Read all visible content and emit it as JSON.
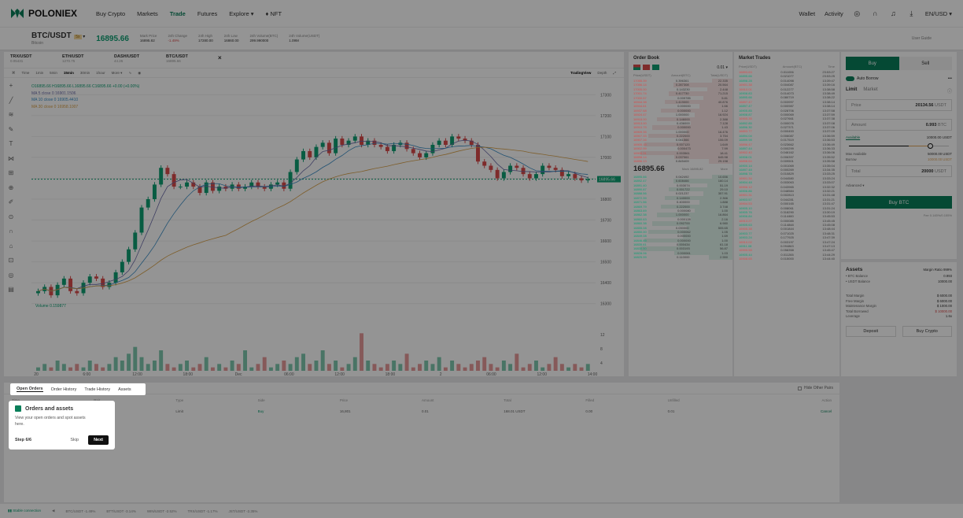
{
  "nav": {
    "brand": "POLONIEX",
    "links": [
      "Buy Crypto",
      "Markets",
      "Trade",
      "Futures",
      "Explore ▾",
      "♦ NFT"
    ],
    "wallet": "Wallet",
    "activity": "Activity",
    "lang": "EN/USD ▾"
  },
  "ticker": {
    "pair": "BTC/USDT",
    "badge": "5x",
    "coin": "Bitcoin",
    "price": "16895.66",
    "price_sub": "16895.66",
    "stats": [
      {
        "label": "Mark Price",
        "value": "16895.82"
      },
      {
        "label": "24h Change",
        "value": "-1.49%"
      },
      {
        "label": "24h High",
        "value": "17280.00"
      },
      {
        "label": "24h Low",
        "value": "16860.00"
      },
      {
        "label": "24h Volume(BTC)",
        "value": "299.990000"
      },
      {
        "label": "24h Volume(USDT)",
        "value": "1.09M"
      }
    ],
    "user_guide": "User Guide"
  },
  "chart_tabs": [
    {
      "name": "TRX/USDT",
      "price": "0.05431"
    },
    {
      "name": "ETH/USDT",
      "price": "1270.75"
    },
    {
      "name": "DASH/USDT",
      "price": "44.26"
    },
    {
      "name": "BTC/USDT",
      "price": "16895.66"
    }
  ],
  "toolbar": {
    "items": [
      "Time",
      "1min",
      "5min",
      "15min",
      "30min",
      "1hour",
      "More ▾"
    ],
    "selected": "15min",
    "tradingview": "TradingView",
    "depth": "Depth"
  },
  "legend": {
    "ohlc": "O16895.66 H16895.66 L16895.66 C16895.66 +0.00 (+0.00%)",
    "ma5": "MA 5 close 0  16901.1506",
    "ma10": "MA 10 close 0  16905.4410",
    "ma30": "MA 30 close 0  16958.1007",
    "volume": "Volume  0.159877"
  },
  "chart_data": {
    "type": "candlestick",
    "title": "",
    "xlabel": "",
    "ylabel": "",
    "x_ticks": [
      "20",
      "6:00",
      "12:00",
      "18:00",
      "Dec",
      "06:00",
      "12:00",
      "18:00",
      "2",
      "06:00",
      "12:00",
      "14:00"
    ],
    "y_ticks": [
      17300,
      17200,
      17100,
      17000,
      16900,
      16800,
      16700,
      16600,
      16500,
      16400,
      16300
    ],
    "ylim": [
      16250,
      17350
    ],
    "last_price_label": "16895.66",
    "volume_ticks": [
      "12",
      "8",
      "4"
    ],
    "series": [
      {
        "name": "Price",
        "values": [
          16360,
          16380,
          16340,
          16390,
          16420,
          16360,
          16350,
          16400,
          16430,
          16420,
          16380,
          16400,
          16450,
          16500,
          16560,
          16640,
          16760,
          16800,
          16870,
          16950,
          16920,
          16860,
          16860,
          16880,
          16860,
          16830,
          16880,
          16840,
          16860,
          16850,
          16870,
          16850,
          16860,
          16880,
          16860,
          16850,
          16870,
          16880,
          16850,
          16930,
          16990,
          17030,
          17000,
          17050,
          17070,
          17020,
          17090,
          17060,
          17080,
          17100,
          17060,
          17080,
          17060,
          17050,
          17030,
          17060,
          17070,
          17040,
          17020,
          17000,
          17020,
          17060,
          17080,
          17060,
          17100,
          17090,
          17080,
          17060,
          16980,
          16960,
          16940,
          16900,
          16930,
          16960,
          16950,
          16920,
          16900,
          16920,
          16960,
          16950,
          16940,
          16910,
          16920,
          16900,
          16890,
          16895
        ]
      },
      {
        "name": "Volume",
        "values": [
          1,
          2,
          1,
          3,
          2,
          1,
          2,
          1,
          3,
          2,
          1,
          2,
          4,
          3,
          5,
          7,
          4,
          2,
          3,
          6,
          2,
          1,
          2,
          3,
          1,
          2,
          4,
          1,
          2,
          1,
          3,
          2,
          6,
          1,
          2,
          4,
          1,
          2,
          3,
          2,
          4,
          5,
          2,
          3,
          6,
          2,
          3,
          1,
          2,
          4,
          11,
          3,
          2,
          1,
          2,
          3,
          2,
          5,
          1,
          2,
          3,
          2,
          4,
          1,
          3,
          2,
          1,
          2,
          3,
          4,
          2,
          1,
          3,
          2,
          5,
          1,
          2,
          3,
          1,
          2,
          4,
          2,
          1,
          2,
          1,
          2
        ]
      }
    ]
  },
  "orderbook": {
    "title": "Order Book",
    "precision": "0.01 ▾",
    "headers": [
      "Price(USDT)",
      "Amount(BTC)",
      "Total(USDT)"
    ],
    "asks": [
      [
        "17055.39",
        "0.396361",
        "22.335"
      ],
      [
        "17056.14",
        "0.287308",
        "20.564"
      ],
      [
        "17005.00",
        "0.143230",
        "2.448"
      ],
      [
        "17001.74",
        "0.417730",
        "71.215"
      ],
      [
        "17000.57",
        "0.009785",
        "5.81"
      ],
      [
        "16944.38",
        "1.419000",
        "40.876"
      ],
      [
        "16944.61",
        "0.000000",
        "1.66"
      ],
      [
        "16937.68",
        "0.000000",
        "1.12"
      ],
      [
        "16924.47",
        "1.000000",
        "16.924"
      ],
      [
        "16918.00",
        "0.146000",
        "2.388"
      ],
      [
        "16913.00",
        "0.436000",
        "7.128"
      ],
      [
        "16910.79",
        "0.000000",
        "1.43"
      ],
      [
        "16909.35",
        "1.000000",
        "16.476"
      ],
      [
        "16907.33",
        "0.222000",
        "3.754"
      ],
      [
        "16907.16",
        "0.041566",
        "106.09"
      ],
      [
        "16905.19",
        "0.007120",
        "1.649"
      ],
      [
        "16902.99",
        "0.000473",
        "7.99"
      ],
      [
        "16900.31",
        "0.003561",
        "18.41"
      ],
      [
        "16898.14",
        "0.037061",
        "645.98"
      ],
      [
        "16896.13",
        "0.845409",
        "29.198"
      ]
    ],
    "mid_price": "16895.66",
    "mark_label": "Mark  16895.82",
    "more": "More",
    "bids": [
      [
        "16895.66",
        "0.042492",
        "10.656"
      ],
      [
        "16892.47",
        "0.608466",
        "160.14"
      ],
      [
        "16891.40",
        "0.003074",
        "51.19"
      ],
      [
        "16890.87",
        "0.001722",
        "29.10"
      ],
      [
        "16888.56",
        "0.021237",
        "357.91"
      ],
      [
        "16872.39",
        "0.140000",
        "2.366"
      ],
      [
        "16871.56",
        "0.400000",
        "1.888"
      ],
      [
        "16869.79",
        "0.222000",
        "3.748"
      ],
      [
        "16863.69",
        "0.000080",
        "1.00"
      ],
      [
        "16862.38",
        "1.000000",
        "16.864"
      ],
      [
        "16860.63",
        "0.000128",
        "2.16"
      ],
      [
        "16860.38",
        "0.092700",
        "6.980"
      ],
      [
        "16855.08",
        "0.030000",
        "505.65"
      ],
      [
        "16850.00",
        "0.000062",
        "1.05"
      ],
      [
        "16849.08",
        "0.000000",
        "1.69"
      ],
      [
        "16846.89",
        "0.000000",
        "1.00"
      ],
      [
        "16835.61",
        "0.000434",
        "61.18"
      ],
      [
        "16830.50",
        "0.003193",
        "56.87"
      ],
      [
        "16828.06",
        "0.000061",
        "1.03"
      ],
      [
        "16825.99",
        "0.110000",
        "2.550"
      ]
    ]
  },
  "market_trades": {
    "title": "Market Trades",
    "headers": [
      "Price(USDT)",
      "Amount(BTC)",
      "Time"
    ],
    "rows": [
      [
        "16893.63",
        "0.011006",
        "23:53:27",
        "r"
      ],
      [
        "16895.66",
        "0.021077",
        "23:53:25",
        "g"
      ],
      [
        "16898.28",
        "0.014098",
        "13:39:47",
        "g"
      ],
      [
        "16901.38",
        "0.004087",
        "13:39:16",
        "r"
      ],
      [
        "16910.01",
        "0.012277",
        "13:38:58",
        "r"
      ],
      [
        "16908.83",
        "0.014073",
        "13:38:49",
        "g"
      ],
      [
        "16895.66",
        "0.080719",
        "13:38:22",
        "g"
      ],
      [
        "16897.47",
        "0.003997",
        "13:38:14",
        "r"
      ],
      [
        "16897.47",
        "0.000987",
        "13:38:14",
        "g"
      ],
      [
        "16905.85",
        "0.028706",
        "13:37:58",
        "g"
      ],
      [
        "16908.87",
        "0.000069",
        "13:37:59",
        "g"
      ],
      [
        "16905.35",
        "0.027661",
        "13:37:38",
        "r"
      ],
      [
        "16892.85",
        "0.000076",
        "13:37:08",
        "g"
      ],
      [
        "16896.30",
        "0.027371",
        "13:37:06",
        "g"
      ],
      [
        "16893.77",
        "0.000453",
        "13:37:09",
        "r"
      ],
      [
        "16894.04",
        "0.006087",
        "13:36:59",
        "g"
      ],
      [
        "16899.98",
        "0.017519",
        "13:36:53",
        "g"
      ],
      [
        "16896.47",
        "0.023662",
        "13:36:49",
        "r"
      ],
      [
        "16897.44",
        "0.000299",
        "13:36:33",
        "g"
      ],
      [
        "16902.40",
        "0.046162",
        "13:36:06",
        "r"
      ],
      [
        "16908.01",
        "0.006397",
        "13:35:52",
        "g"
      ],
      [
        "16898.64",
        "0.009501",
        "13:35:58",
        "r"
      ],
      [
        "16900.14",
        "0.001069",
        "13:35:04",
        "g"
      ],
      [
        "16897.48",
        "0.000269",
        "13:34:35",
        "g"
      ],
      [
        "16898.78",
        "0.010829",
        "13:33:25",
        "g"
      ],
      [
        "16901.34",
        "0.044580",
        "13:33:24",
        "r"
      ],
      [
        "16904.48",
        "0.003063",
        "13:33:07",
        "g"
      ],
      [
        "16906.12",
        "0.043965",
        "13:32:32",
        "r"
      ],
      [
        "16906.86",
        "0.048584",
        "13:32:21",
        "g"
      ],
      [
        "16901.31",
        "0.002813",
        "13:31:48",
        "r"
      ],
      [
        "16903.57",
        "0.044281",
        "13:31:21",
        "g"
      ],
      [
        "16904.53",
        "0.000165",
        "13:31:47",
        "r"
      ],
      [
        "16905.10",
        "0.008061",
        "13:31:24",
        "g"
      ],
      [
        "16905.76",
        "0.318290",
        "13:30:19",
        "g"
      ],
      [
        "16906.84",
        "0.114460",
        "13:45:53",
        "g"
      ],
      [
        "16913.27",
        "0.000085",
        "13:45:45",
        "r"
      ],
      [
        "16905.63",
        "0.114848",
        "13:45:08",
        "g"
      ],
      [
        "16905.38",
        "0.001844",
        "13:48:44",
        "r"
      ],
      [
        "16903.77",
        "0.071025",
        "13:48:31",
        "g"
      ],
      [
        "16903.24",
        "0.177925",
        "13:47:39",
        "g"
      ],
      [
        "16910.02",
        "0.003197",
        "13:47:24",
        "r"
      ],
      [
        "16911.08",
        "0.094863",
        "13:47:13",
        "g"
      ],
      [
        "16905.58",
        "0.058358",
        "13:45:47",
        "r"
      ],
      [
        "16905.44",
        "0.011265",
        "13:44:29",
        "g"
      ],
      [
        "16908.65",
        "0.015000",
        "13:44:40",
        "r"
      ]
    ]
  },
  "trade": {
    "buy": "Buy",
    "sell": "Sell",
    "auto_borrow": "Auto Borrow",
    "more": "•••",
    "limit": "Limit",
    "market": "Market",
    "price_label": "Price",
    "price_value": "20134.56",
    "price_unit": "USDT",
    "amount_label": "Amount",
    "amount_value": "0.993",
    "amount_unit": "BTC",
    "available": "Available",
    "available_value": "10000.00 USDT",
    "max_available": "Max Available",
    "max_available_value": "50000.00 USDT",
    "borrow": "Borrow",
    "borrow_value": "10000.00 USDT",
    "total_label": "Total",
    "total_value": "20000",
    "total_unit": "USDT",
    "advanced": "Advanced ▾",
    "buy_btn": "Buy BTC",
    "fee": "Fee 0.145%/0.155%"
  },
  "assets": {
    "title": "Assets",
    "margin_ratio": "Margin Ratio 999%",
    "btc_label": "• BTC Balance",
    "btc_value": "0.993",
    "usdt_label": "• USDT Balance",
    "usdt_value": "10000.00",
    "rows": [
      [
        "Total Margin",
        "$ 6000.00"
      ],
      [
        "Free Margin",
        "$ 6000.00"
      ],
      [
        "Maintenance Margin",
        "$ 1000.00"
      ],
      [
        "Total Borrowed",
        "$ 10000.00"
      ],
      [
        "Leverage",
        "1.6x"
      ]
    ],
    "deposit": "Deposit",
    "buy_crypto": "Buy Crypto"
  },
  "orders": {
    "tabs": [
      "Open Orders",
      "Order History",
      "Trade History",
      "Assets"
    ],
    "hide_pairs": "Hide Other Pairs",
    "headers": [
      "Time",
      "Pair",
      "Type",
      "Side",
      "Price",
      "Amount",
      "Total",
      "Filled",
      "Unfilled",
      "Action"
    ],
    "row": [
      "2022-12-02 13:48",
      "BTC/USDT",
      "Limit",
      "Buy",
      "16,801",
      "0.01",
      "168.01 USDT",
      "0.00",
      "0.01",
      "Cancel"
    ]
  },
  "tour": {
    "title": "Orders and assets",
    "body": "View your open orders and spot assets here.",
    "step": "Step 6/6",
    "skip": "Skip",
    "next": "Next"
  },
  "footer": {
    "status": "Stable connection",
    "tickers": [
      "BTC/USDT -1.49%",
      "BTT/USDT -3.14%",
      "WIN/USDT -2.52%",
      "TRX/USDT -1.17%",
      "JST/USDT -2.35%"
    ]
  },
  "colors": {
    "brand": "#0a7f5a",
    "up": "#0e9f73",
    "down": "#d94b4b"
  }
}
